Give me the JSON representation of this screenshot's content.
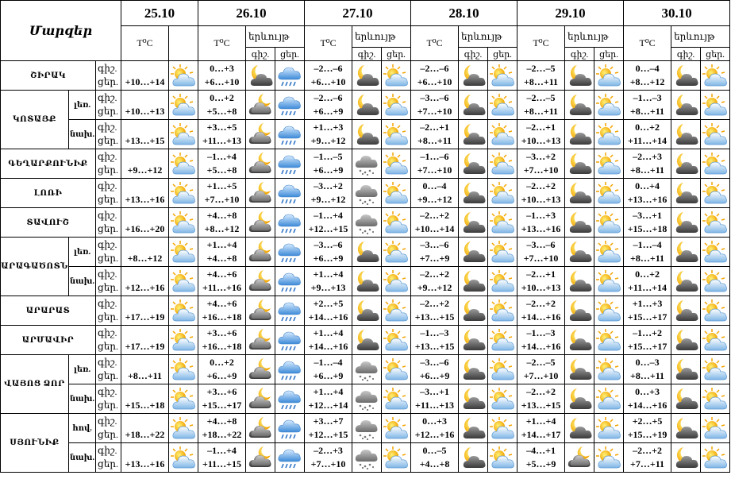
{
  "header": {
    "regions": "Մարզեր",
    "temp": "T⁰C",
    "phenomenon": "երևույթ",
    "night": "գիշ.",
    "day": "ցեր.",
    "dates": [
      "25.10",
      "26.10",
      "27.10",
      "28.10",
      "29.10",
      "30.10"
    ]
  },
  "regions": [
    {
      "name": "ՇԻՐԱԿ",
      "rows": [
        {
          "first": "+10…+14",
          "temps": [
            [
              "0…+3",
              "+6…+10"
            ],
            [
              "–2…–6",
              "+6…+10"
            ],
            [
              "–2…–6",
              "+6…+10"
            ],
            [
              "–2…–5",
              "+8…+11"
            ],
            [
              "0…–4",
              "+8…+12"
            ]
          ]
        }
      ]
    },
    {
      "name": "ԿՈՏԱՅՔ",
      "rows": [
        {
          "sub": "լեռ.",
          "first": "+10…+13",
          "temps": [
            [
              "0…+2",
              "+5…+8"
            ],
            [
              "–2…–6",
              "+6…+9"
            ],
            [
              "–3…–6",
              "+7…+10"
            ],
            [
              "–2…–5",
              "+8…+11"
            ],
            [
              "–1…–3",
              "+8…+11"
            ]
          ]
        },
        {
          "sub": "նախ.",
          "first": "+13…+15",
          "temps": [
            [
              "+3…+5",
              "+11…+13"
            ],
            [
              "+1…+3",
              "+9…+12"
            ],
            [
              "–2…+1",
              "+8…+11"
            ],
            [
              "–2…+1",
              "+10…+13"
            ],
            [
              "0…+2",
              "+11…+14"
            ]
          ]
        }
      ]
    },
    {
      "name": "ԳԵՂԱՐՔՈՒՆԻՔ",
      "rows": [
        {
          "first": "+9…+12",
          "temps": [
            [
              "–1…+4",
              "+5…+8"
            ],
            [
              "–1…–5",
              "+6…+9"
            ],
            [
              "–1…–6",
              "+7…+10"
            ],
            [
              "–3…+2",
              "+7…+10"
            ],
            [
              "–2…+3",
              "+8…+11"
            ]
          ]
        }
      ]
    },
    {
      "name": "ԼՈՌԻ",
      "rows": [
        {
          "first": "+13…+16",
          "temps": [
            [
              "+1…+5",
              "+7…+10"
            ],
            [
              "–3…+2",
              "+9…+12"
            ],
            [
              "0…–4",
              "+9…+12"
            ],
            [
              "–2…+2",
              "+10…+13"
            ],
            [
              "0…+4",
              "+13…+16"
            ]
          ]
        }
      ]
    },
    {
      "name": "ՏԱՎՈՒՇ",
      "rows": [
        {
          "first": "+16…+20",
          "temps": [
            [
              "+4…+8",
              "+8…+12"
            ],
            [
              "–1…+4",
              "+12…+15"
            ],
            [
              "–2…+2",
              "+10…+14"
            ],
            [
              "–1…+3",
              "+13…+16"
            ],
            [
              "–3…+1",
              "+15…+18"
            ]
          ]
        }
      ]
    },
    {
      "name": "ԱՐԱԳԱԾՈՏՆ",
      "rows": [
        {
          "sub": "լեռ.",
          "first": "+8…+12",
          "temps": [
            [
              "+1…+4",
              "+4…+8"
            ],
            [
              "–3…–6",
              "+6…+9"
            ],
            [
              "–3…–6",
              "+7…+9"
            ],
            [
              "–3…–6",
              "+7…+10"
            ],
            [
              "–1…–4",
              "+8…+11"
            ]
          ]
        },
        {
          "sub": "նախ.",
          "first": "+12…+16",
          "temps": [
            [
              "+4…+6",
              "+11…+16"
            ],
            [
              "+1…+4",
              "+9…+13"
            ],
            [
              "–2…+2",
              "+9…+12"
            ],
            [
              "–2…+1",
              "+10…+13"
            ],
            [
              "0…+2",
              "+11…+14"
            ]
          ]
        }
      ]
    },
    {
      "name": "ԱՐԱՐԱՏ",
      "rows": [
        {
          "first": "+17…+19",
          "temps": [
            [
              "+4…+6",
              "+16…+18"
            ],
            [
              "+2…+5",
              "+14…+16"
            ],
            [
              "–2…+2",
              "+13…+15"
            ],
            [
              "–2…+2",
              "+14…+16"
            ],
            [
              "+1…+3",
              "+15…+17"
            ]
          ]
        }
      ]
    },
    {
      "name": "ԱՐՄԱՎԻՐ",
      "rows": [
        {
          "first": "+17…+19",
          "temps": [
            [
              "+3…+6",
              "+16…+18"
            ],
            [
              "+1…+4",
              "+14…+16"
            ],
            [
              "–1…–3",
              "+13…+15"
            ],
            [
              "–1…–3",
              "+14…+16"
            ],
            [
              "–1…+2",
              "+15…+17"
            ]
          ]
        }
      ]
    },
    {
      "name": "ՎԱՅՈՑ ՁՈՐ",
      "rows": [
        {
          "sub": "լեռ.",
          "first": "+8…+11",
          "temps": [
            [
              "0…+2",
              "+6…+9"
            ],
            [
              "–1…–4",
              "+6…+9"
            ],
            [
              "–3…–6",
              "+6…+9"
            ],
            [
              "–2…–5",
              "+7…+10"
            ],
            [
              "0…–3",
              "+8…+11"
            ]
          ]
        },
        {
          "sub": "նախ.",
          "first": "+15…+18",
          "temps": [
            [
              "+3…+6",
              "+15…+17"
            ],
            [
              "+1…+4",
              "+12…+14"
            ],
            [
              "–3…+1",
              "+11…+13"
            ],
            [
              "–2…+2",
              "+13…+15"
            ],
            [
              "0…+3",
              "+14…+16"
            ]
          ]
        }
      ]
    },
    {
      "name": "ՍՅՈՒՆԻՔ",
      "rows": [
        {
          "sub": "հով.",
          "first": "+18…+22",
          "temps": [
            [
              "+4…+8",
              "+18…+22"
            ],
            [
              "+3…+7",
              "+12…+15"
            ],
            [
              "0…+3",
              "+12…+16"
            ],
            [
              "+1…+4",
              "+14…+17"
            ],
            [
              "+2…+5",
              "+15…+19"
            ]
          ]
        },
        {
          "sub": "նախ.",
          "first": "+13…+16",
          "temps": [
            [
              "–1…+4",
              "+11…+15"
            ],
            [
              "–2…+3",
              "+7…+10"
            ],
            [
              "0…–5",
              "+4…+8"
            ],
            [
              "–4…+1",
              "+5…+9"
            ],
            [
              "–2…+2",
              "+7…+11"
            ]
          ]
        }
      ]
    }
  ]
}
